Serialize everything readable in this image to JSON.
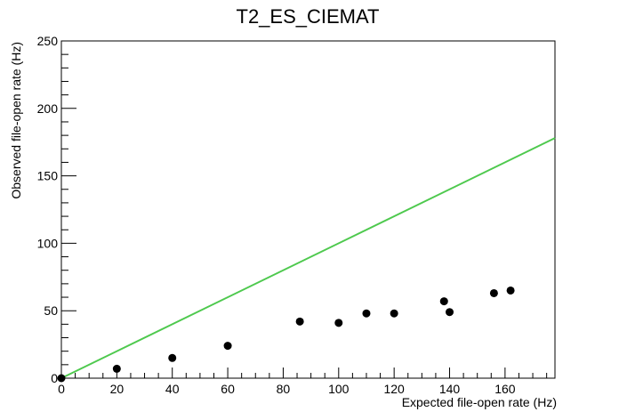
{
  "chart_data": {
    "type": "scatter",
    "title": "T2_ES_CIEMAT",
    "xlabel": "Expected file-open rate (Hz)",
    "ylabel": "Observed file-open rate (Hz)",
    "xlim": [
      0,
      178
    ],
    "ylim": [
      0,
      250
    ],
    "x_ticks": [
      0,
      20,
      40,
      60,
      80,
      100,
      120,
      140,
      160
    ],
    "y_ticks": [
      0,
      50,
      100,
      150,
      200,
      250
    ],
    "grid": false,
    "legend": "none",
    "points": [
      {
        "x": 0,
        "y": 0
      },
      {
        "x": 20,
        "y": 7
      },
      {
        "x": 40,
        "y": 15
      },
      {
        "x": 60,
        "y": 24
      },
      {
        "x": 86,
        "y": 42
      },
      {
        "x": 100,
        "y": 41
      },
      {
        "x": 110,
        "y": 48
      },
      {
        "x": 120,
        "y": 48
      },
      {
        "x": 138,
        "y": 57
      },
      {
        "x": 140,
        "y": 49
      },
      {
        "x": 156,
        "y": 63
      },
      {
        "x": 162,
        "y": 65
      }
    ],
    "reference_line": {
      "x": [
        0,
        178
      ],
      "y": [
        0,
        178
      ],
      "color": "#4ec94e"
    },
    "marker_color": "#000000"
  }
}
